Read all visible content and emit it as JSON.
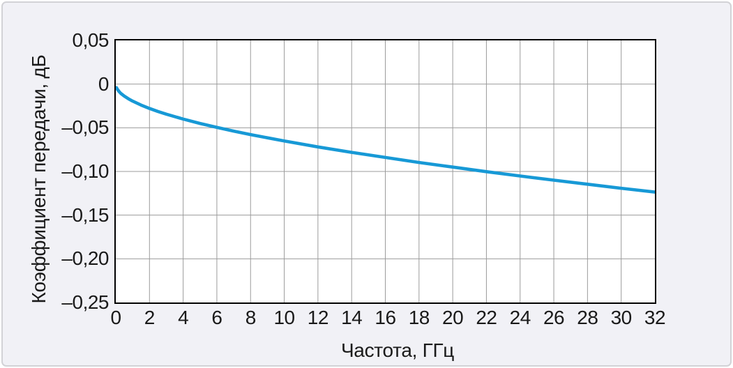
{
  "figure": {
    "panel_bg": "#f1f1f6",
    "panel_border": "#d2d2d6",
    "plot_bg": "#ffffff",
    "grid_color": "#9b9b9b",
    "axis_box_color": "#000000",
    "curve_color": "#1799d6"
  },
  "chart_data": {
    "type": "line",
    "title": "",
    "xlabel": "Частота, ГГц",
    "ylabel": "Коэффициент передачи, дБ",
    "xlim": [
      0,
      32
    ],
    "ylim": [
      -0.25,
      0.05
    ],
    "grid": "on",
    "legend": "none",
    "x_ticks": {
      "values": [
        0,
        2,
        4,
        6,
        8,
        10,
        12,
        14,
        16,
        18,
        20,
        22,
        24,
        26,
        28,
        30,
        32
      ],
      "labels": [
        "0",
        "2",
        "4",
        "6",
        "8",
        "10",
        "12",
        "14",
        "16",
        "18",
        "20",
        "22",
        "24",
        "26",
        "28",
        "30",
        "32"
      ]
    },
    "y_ticks": {
      "values": [
        0.05,
        0,
        -0.05,
        -0.1,
        -0.15,
        -0.2,
        -0.25
      ],
      "labels": [
        "0,05",
        "0",
        "–0,05",
        "–0,10",
        "–0,15",
        "–0,20",
        "–0,25"
      ]
    },
    "series": [
      {
        "name": "Коэффициент передачи",
        "color": "#1799d6",
        "x": [
          0.04,
          0.1,
          0.2,
          0.3,
          0.5,
          0.75,
          1,
          1.5,
          2,
          2.5,
          3,
          4,
          5,
          6,
          7,
          8,
          10,
          12,
          14,
          16,
          18,
          20,
          22,
          24,
          26,
          28,
          30,
          32
        ],
        "y": [
          -0.004,
          -0.006,
          -0.0086,
          -0.0106,
          -0.0137,
          -0.0168,
          -0.0195,
          -0.024,
          -0.0279,
          -0.0313,
          -0.0344,
          -0.04,
          -0.045,
          -0.0496,
          -0.0538,
          -0.0578,
          -0.0651,
          -0.0719,
          -0.0781,
          -0.084,
          -0.0897,
          -0.095,
          -0.1002,
          -0.1052,
          -0.11,
          -0.1146,
          -0.1192,
          -0.1236
        ]
      }
    ]
  }
}
